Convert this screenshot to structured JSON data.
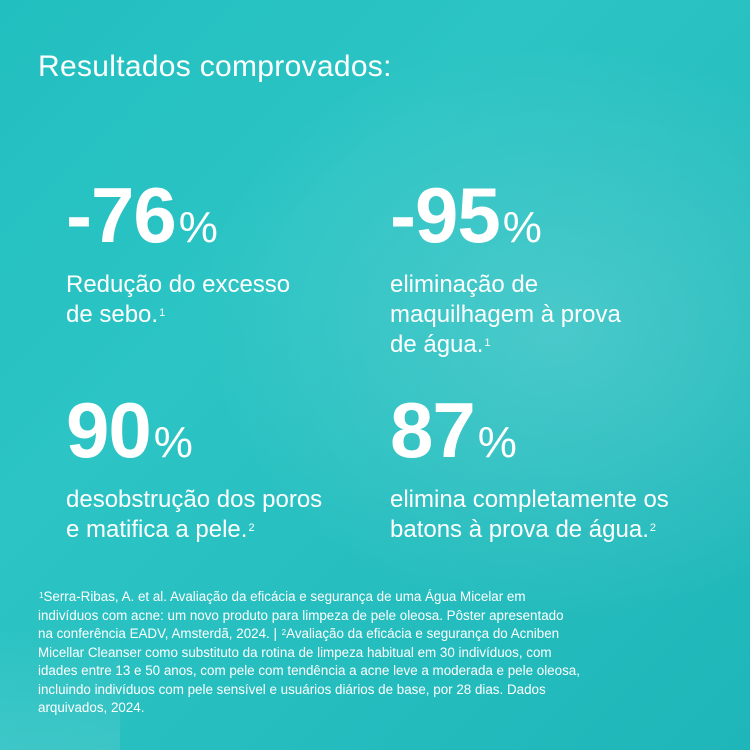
{
  "title": "Resultados comprovados:",
  "stats": [
    {
      "value": "-76",
      "unit": "%",
      "desc_lines": [
        "Redução do excesso",
        "de sebo."
      ],
      "ref": "1"
    },
    {
      "value": "-95",
      "unit": "%",
      "desc_lines": [
        "eliminação de",
        "maquilhagem à prova",
        "de água."
      ],
      "ref": "1"
    },
    {
      "value": "90",
      "unit": "%",
      "desc_lines": [
        "desobstrução dos poros",
        "e matifica a pele."
      ],
      "ref": "2"
    },
    {
      "value": "87",
      "unit": "%",
      "desc_lines": [
        "elimina completamente os",
        "batons à prova de água."
      ],
      "ref": "2"
    }
  ],
  "footnote": {
    "ref1": "1",
    "line1": "Serra-Ribas, A. et al. Avaliação da eficácia e segurança de uma Água Micelar em",
    "line2": "indivíduos com acne: um novo produto para limpeza de pele oleosa. Pôster apresentado",
    "line3a": "na conferência EADV, Amsterdã, 2024. | ",
    "ref2": "2",
    "line3b": "Avaliação da eficácia e segurança do Acniben",
    "line4": "Micellar Cleanser como substituto da rotina de limpeza habitual em 30 indivíduos, com",
    "line5": "idades entre 13 e 50 anos, com pele com tendência a acne leve a moderada e pele oleosa,",
    "line6": "incluindo indivíduos com pele sensível e usuários diários de base, por 28 dias. Dados",
    "line7": "arquivados, 2024."
  }
}
